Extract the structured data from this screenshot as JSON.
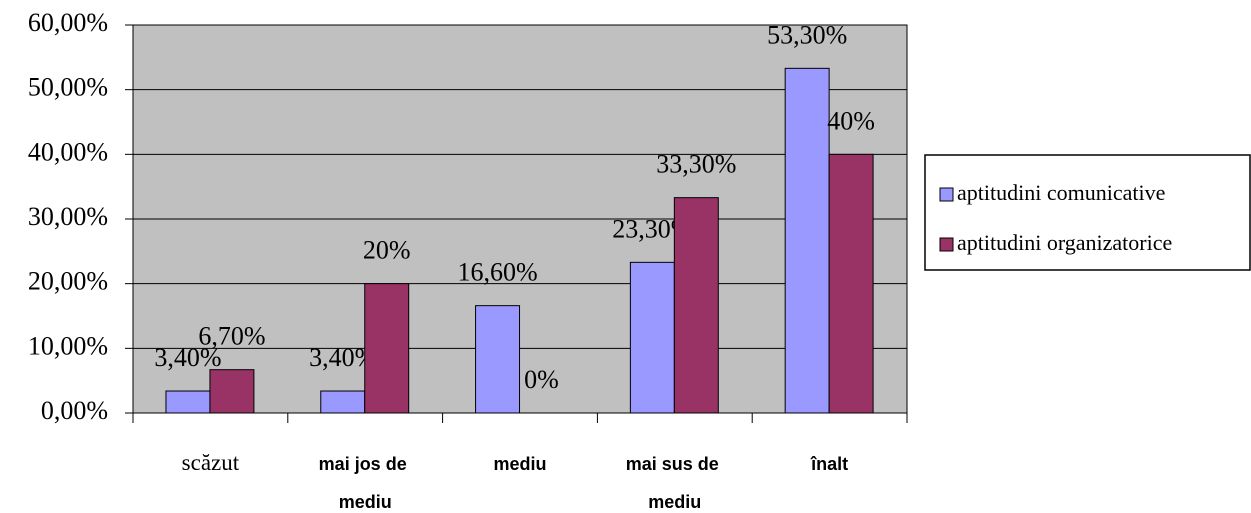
{
  "chart_data": {
    "type": "bar",
    "categories": [
      "scăzut",
      "mai jos de mediu",
      "mediu",
      "mai sus de mediu",
      "înalt"
    ],
    "series": [
      {
        "name": "aptitudini comunicative",
        "color": "#9999ff",
        "values": [
          3.4,
          3.4,
          16.6,
          23.3,
          53.3
        ],
        "value_labels": [
          "3,40%",
          "3,40%",
          "16,60%",
          "23,30%",
          "53,30%"
        ]
      },
      {
        "name": "aptitudini organizatorice",
        "color": "#993366",
        "values": [
          6.7,
          20,
          0,
          33.3,
          40
        ],
        "value_labels": [
          "6,70%",
          "20%",
          "0%",
          "33,30%",
          "40%"
        ]
      }
    ],
    "ylim": [
      0,
      60
    ],
    "yticks": [
      {
        "value": 0,
        "label": "0,00%"
      },
      {
        "value": 10,
        "label": "10,00%"
      },
      {
        "value": 20,
        "label": "20,00%"
      },
      {
        "value": 30,
        "label": "30,00%"
      },
      {
        "value": 40,
        "label": "40,00%"
      },
      {
        "value": 50,
        "label": "50,00%"
      },
      {
        "value": 60,
        "label": "60,00%"
      }
    ],
    "grid": true,
    "legend": "right"
  }
}
